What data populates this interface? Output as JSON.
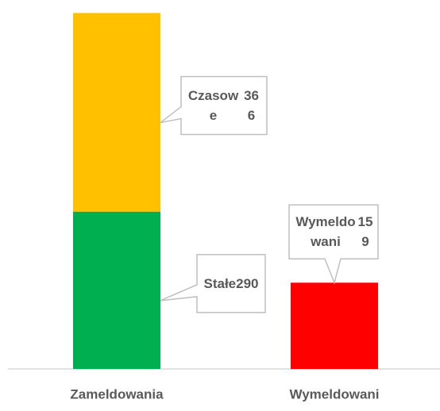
{
  "chart_data": {
    "type": "stacked_bar",
    "categories": [
      "Zameldowania",
      "Wymeldowani"
    ],
    "series": [
      {
        "name": "Stałe",
        "color": "#00b050",
        "values": [
          290,
          null
        ]
      },
      {
        "name": "Czasowe",
        "color": "#ffc000",
        "values": [
          366,
          null
        ]
      },
      {
        "name": "Wymeldowani",
        "color": "#ff0000",
        "values": [
          null,
          159
        ]
      }
    ],
    "ylim": [
      0,
      680
    ]
  }
}
